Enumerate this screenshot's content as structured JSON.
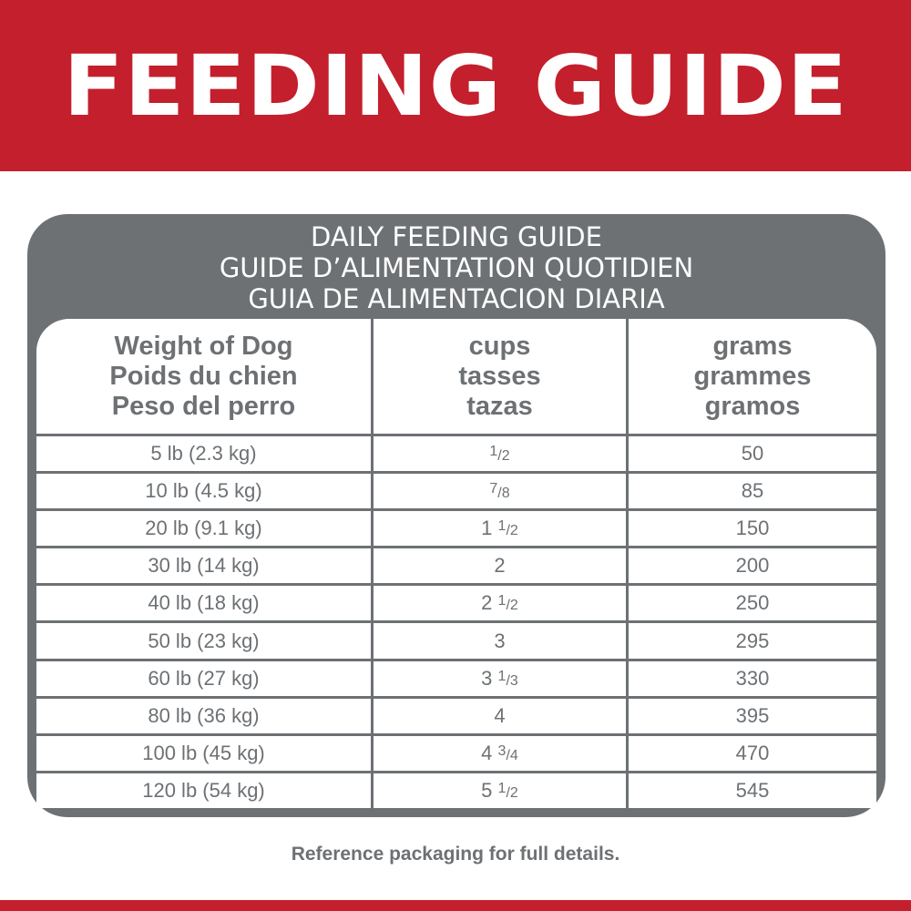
{
  "banner": {
    "title": "FEEDING GUIDE",
    "color": "#c41f2c"
  },
  "panel": {
    "title_lines": [
      "DAILY FEEDING GUIDE",
      "GUIDE D’ALIMENTATION QUOTIDIEN",
      "GUIA DE ALIMENTACION DIARIA"
    ],
    "color": "#6d7174"
  },
  "table": {
    "headers": [
      [
        "Weight of Dog",
        "Poids du chien",
        "Peso del perro"
      ],
      [
        "cups",
        "tasses",
        "tazas"
      ],
      [
        "grams",
        "grammes",
        "gramos"
      ]
    ],
    "rows": [
      {
        "weight": "5 lb (2.3 kg)",
        "cups": {
          "whole": "",
          "num": "1",
          "den": "2"
        },
        "grams": "50"
      },
      {
        "weight": "10 lb (4.5 kg)",
        "cups": {
          "whole": "",
          "num": "7",
          "den": "8"
        },
        "grams": "85"
      },
      {
        "weight": "20 lb (9.1 kg)",
        "cups": {
          "whole": "1",
          "num": "1",
          "den": "2"
        },
        "grams": "150"
      },
      {
        "weight": "30 lb (14 kg)",
        "cups": {
          "whole": "2",
          "num": "",
          "den": ""
        },
        "grams": "200"
      },
      {
        "weight": "40 lb (18 kg)",
        "cups": {
          "whole": "2",
          "num": "1",
          "den": "2"
        },
        "grams": "250"
      },
      {
        "weight": "50 lb (23 kg)",
        "cups": {
          "whole": "3",
          "num": "",
          "den": ""
        },
        "grams": "295"
      },
      {
        "weight": "60 lb (27 kg)",
        "cups": {
          "whole": "3",
          "num": "1",
          "den": "3"
        },
        "grams": "330"
      },
      {
        "weight": "80 lb (36 kg)",
        "cups": {
          "whole": "4",
          "num": "",
          "den": ""
        },
        "grams": "395"
      },
      {
        "weight": "100 lb (45 kg)",
        "cups": {
          "whole": "4",
          "num": "3",
          "den": "4"
        },
        "grams": "470"
      },
      {
        "weight": "120 lb (54 kg)",
        "cups": {
          "whole": "5",
          "num": "1",
          "den": "2"
        },
        "grams": "545"
      }
    ]
  },
  "footer": {
    "note": "Reference packaging for full details."
  }
}
